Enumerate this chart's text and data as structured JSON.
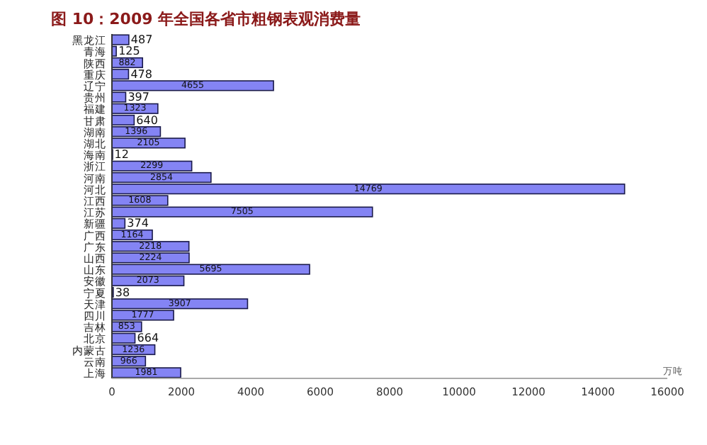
{
  "chart_data": {
    "type": "bar",
    "orientation": "horizontal",
    "title": "图 10：2009 年全国各省市粗钢表观消费量",
    "xlabel": "万吨",
    "categories": [
      "黑龙江",
      "青海",
      "陕西",
      "重庆",
      "辽宁",
      "贵州",
      "福建",
      "甘肃",
      "湖南",
      "湖北",
      "海南",
      "浙江",
      "河南",
      "河北",
      "江西",
      "江苏",
      "新疆",
      "广西",
      "广东",
      "山西",
      "山东",
      "安徽",
      "宁夏",
      "天津",
      "四川",
      "吉林",
      "北京",
      "内蒙古",
      "云南",
      "上海"
    ],
    "values": [
      487,
      125,
      882,
      478,
      4655,
      397,
      1323,
      640,
      1396,
      2105,
      12,
      2299,
      2854,
      14769,
      1608,
      7505,
      374,
      1164,
      2218,
      2224,
      5695,
      2073,
      38,
      3907,
      1777,
      853,
      664,
      1236,
      966,
      1981
    ],
    "color": "#8484f4",
    "xlim": [
      0,
      16000
    ],
    "xticks": [
      0,
      2000,
      4000,
      6000,
      8000,
      10000,
      12000,
      14000,
      16000
    ],
    "data_labels": true,
    "grid": false
  }
}
